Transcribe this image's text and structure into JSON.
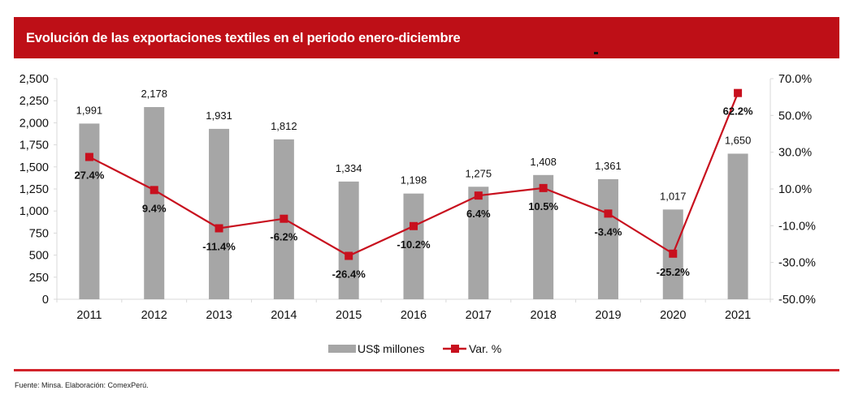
{
  "header": {
    "title": "Evolución de las exportaciones textiles en el periodo enero-diciembre"
  },
  "footer": {
    "source": "Fuente: Minsa. Elaboración: ComexPerú."
  },
  "colors": {
    "banner": "#be0f17",
    "bars": "#a6a6a6",
    "line": "#c8101e",
    "axis": "#d9d9d9"
  },
  "chart_data": {
    "type": "bar",
    "title": "Evolución de las exportaciones textiles en el periodo enero-diciembre",
    "categories": [
      "2011",
      "2012",
      "2013",
      "2014",
      "2015",
      "2016",
      "2017",
      "2018",
      "2019",
      "2020",
      "2021"
    ],
    "series": [
      {
        "name": "US$ millones",
        "type": "bar",
        "axis": "left",
        "values": [
          1991,
          2178,
          1931,
          1812,
          1334,
          1198,
          1275,
          1408,
          1361,
          1017,
          1650
        ],
        "labels": [
          "1,991",
          "2,178",
          "1,931",
          "1,812",
          "1,334",
          "1,198",
          "1,275",
          "1,408",
          "1,361",
          "1,017",
          "1,650"
        ]
      },
      {
        "name": "Var. %",
        "type": "line",
        "axis": "right",
        "values": [
          27.4,
          9.4,
          -11.4,
          -6.2,
          -26.4,
          -10.2,
          6.4,
          10.5,
          -3.4,
          -25.2,
          62.2
        ],
        "labels": [
          "27.4%",
          "9.4%",
          "-11.4%",
          "-6.2%",
          "-26.4%",
          "-10.2%",
          "6.4%",
          "10.5%",
          "-3.4%",
          "-25.2%",
          "62.2%"
        ]
      }
    ],
    "y_left": {
      "range": [
        0,
        2500
      ],
      "ticks": [
        0,
        250,
        500,
        750,
        1000,
        1250,
        1500,
        1750,
        2000,
        2250,
        2500
      ],
      "tick_labels": [
        "0",
        "250",
        "500",
        "750",
        "1,000",
        "1,250",
        "1,500",
        "1,750",
        "2,000",
        "2,250",
        "2,500"
      ]
    },
    "y_right": {
      "range": [
        -50,
        70
      ],
      "ticks": [
        -50,
        -30,
        -10,
        10,
        30,
        50,
        70
      ],
      "tick_labels": [
        "-50.0%",
        "-30.0%",
        "-10.0%",
        "10.0%",
        "30.0%",
        "50.0%",
        "70.0%"
      ]
    },
    "xlabel": "",
    "ylabel": "",
    "grid": false,
    "legend": {
      "position": "bottom",
      "entries": [
        "US$ millones",
        "Var. %"
      ]
    }
  }
}
